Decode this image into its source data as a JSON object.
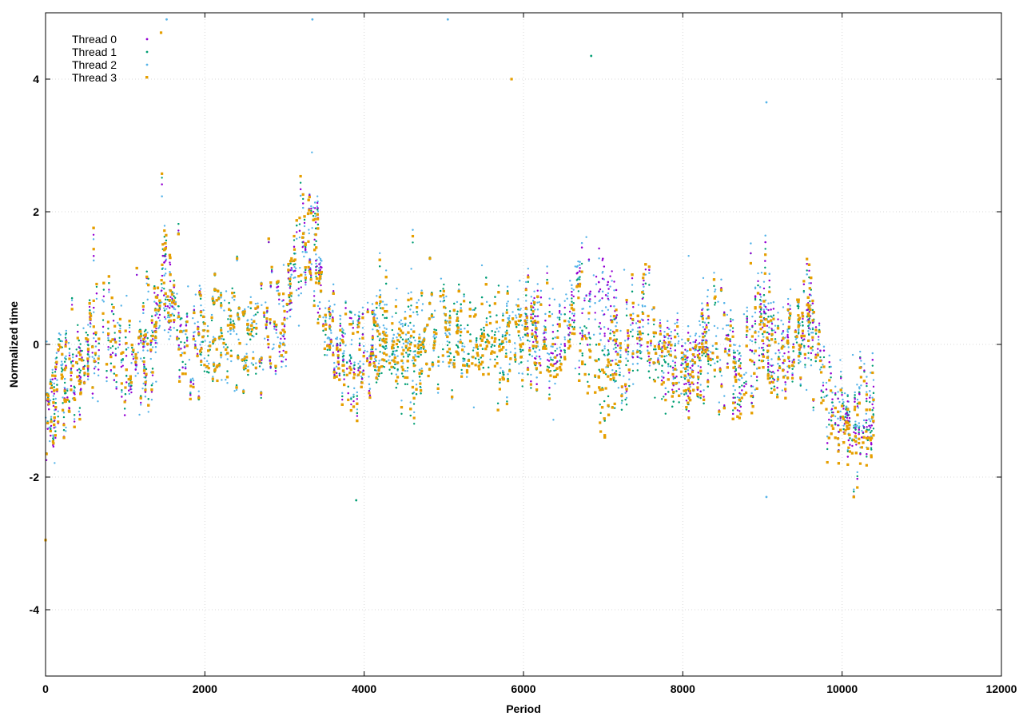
{
  "chart_data": {
    "type": "scatter",
    "title": "",
    "xlabel": "Period",
    "ylabel": "Normalized time",
    "xlim": [
      0,
      12000
    ],
    "ylim": [
      -5,
      5
    ],
    "x_ticks": [
      "0",
      "2000",
      "4000",
      "6000",
      "8000",
      "10000",
      "12000"
    ],
    "y_ticks": [
      "-4",
      "-2",
      "0",
      "2",
      "4"
    ],
    "grid": true,
    "legend_position": "top-left",
    "x_data_range": [
      0,
      10400
    ],
    "series": [
      {
        "name": "Thread 0",
        "color": "#9400d3",
        "marker": "dot",
        "approx_trend": [
          [
            0,
            -1.1
          ],
          [
            200,
            -0.6
          ],
          [
            400,
            -0.5
          ],
          [
            700,
            0.2
          ],
          [
            1000,
            -0.3
          ],
          [
            1300,
            -0.2
          ],
          [
            1500,
            1.2
          ],
          [
            1700,
            0.0
          ],
          [
            2000,
            0.1
          ],
          [
            2300,
            0.2
          ],
          [
            2600,
            0.0
          ],
          [
            3000,
            0.3
          ],
          [
            3200,
            1.5
          ],
          [
            3400,
            1.6
          ],
          [
            3500,
            0.3
          ],
          [
            3800,
            -0.4
          ],
          [
            4200,
            0.2
          ],
          [
            4600,
            -0.1
          ],
          [
            5000,
            0.3
          ],
          [
            5300,
            -0.2
          ],
          [
            5700,
            0.0
          ],
          [
            6000,
            0.1
          ],
          [
            6400,
            0.0
          ],
          [
            6700,
            0.6
          ],
          [
            7000,
            0.8
          ],
          [
            7200,
            -0.1
          ],
          [
            7500,
            0.4
          ],
          [
            7800,
            -0.2
          ],
          [
            8100,
            -0.3
          ],
          [
            8400,
            0.2
          ],
          [
            8700,
            -0.6
          ],
          [
            9000,
            0.4
          ],
          [
            9300,
            -0.2
          ],
          [
            9600,
            0.5
          ],
          [
            9800,
            -0.8
          ],
          [
            10100,
            -1.3
          ],
          [
            10400,
            -1.0
          ]
        ]
      },
      {
        "name": "Thread 1",
        "color": "#009e73",
        "marker": "dot",
        "approx_trend": [
          [
            0,
            -1.0
          ],
          [
            200,
            -0.5
          ],
          [
            400,
            -0.4
          ],
          [
            700,
            0.3
          ],
          [
            1000,
            -0.2
          ],
          [
            1300,
            -0.1
          ],
          [
            1500,
            1.3
          ],
          [
            1700,
            0.1
          ],
          [
            2000,
            0.0
          ],
          [
            2300,
            0.3
          ],
          [
            2600,
            -0.1
          ],
          [
            3000,
            0.4
          ],
          [
            3200,
            1.6
          ],
          [
            3400,
            1.5
          ],
          [
            3500,
            0.2
          ],
          [
            3800,
            -0.3
          ],
          [
            4200,
            0.1
          ],
          [
            4600,
            -0.2
          ],
          [
            5000,
            0.4
          ],
          [
            5300,
            -0.1
          ],
          [
            5700,
            0.1
          ],
          [
            6000,
            0.0
          ],
          [
            6400,
            -0.1
          ],
          [
            6700,
            0.5
          ],
          [
            7000,
            -0.6
          ],
          [
            7200,
            -0.3
          ],
          [
            7500,
            0.2
          ],
          [
            7800,
            -0.5
          ],
          [
            8100,
            -0.4
          ],
          [
            8400,
            0.1
          ],
          [
            8700,
            -0.5
          ],
          [
            9000,
            0.3
          ],
          [
            9300,
            -0.3
          ],
          [
            9600,
            0.4
          ],
          [
            9800,
            -0.9
          ],
          [
            10100,
            -1.2
          ],
          [
            10400,
            -1.1
          ]
        ]
      },
      {
        "name": "Thread 2",
        "color": "#56b4e9",
        "marker": "dot",
        "approx_trend": [
          [
            0,
            -1.0
          ],
          [
            200,
            -0.4
          ],
          [
            400,
            -0.5
          ],
          [
            700,
            0.1
          ],
          [
            1000,
            -0.2
          ],
          [
            1300,
            -0.3
          ],
          [
            1500,
            1.0
          ],
          [
            1700,
            0.0
          ],
          [
            2000,
            0.2
          ],
          [
            2300,
            0.1
          ],
          [
            2600,
            0.1
          ],
          [
            3000,
            0.2
          ],
          [
            3200,
            1.4
          ],
          [
            3400,
            1.7
          ],
          [
            3500,
            0.4
          ],
          [
            3800,
            -0.3
          ],
          [
            4200,
            0.3
          ],
          [
            4600,
            0.0
          ],
          [
            5000,
            0.2
          ],
          [
            5300,
            -0.1
          ],
          [
            5700,
            0.1
          ],
          [
            6000,
            0.2
          ],
          [
            6400,
            0.1
          ],
          [
            6700,
            0.7
          ],
          [
            7000,
            0.6
          ],
          [
            7200,
            -0.2
          ],
          [
            7500,
            0.3
          ],
          [
            7800,
            -0.1
          ],
          [
            8100,
            -0.2
          ],
          [
            8400,
            0.3
          ],
          [
            8700,
            -0.4
          ],
          [
            9000,
            0.5
          ],
          [
            9300,
            -0.1
          ],
          [
            9600,
            0.3
          ],
          [
            9800,
            -0.7
          ],
          [
            10100,
            -1.2
          ],
          [
            10400,
            -0.9
          ]
        ]
      },
      {
        "name": "Thread 3",
        "color": "#e69f00",
        "marker": "square",
        "approx_trend": [
          [
            0,
            -1.0
          ],
          [
            200,
            -0.6
          ],
          [
            400,
            -0.6
          ],
          [
            700,
            0.4
          ],
          [
            1000,
            -0.1
          ],
          [
            1300,
            -0.2
          ],
          [
            1500,
            1.4
          ],
          [
            1700,
            -0.1
          ],
          [
            2000,
            0.1
          ],
          [
            2300,
            0.2
          ],
          [
            2600,
            0.0
          ],
          [
            3000,
            0.4
          ],
          [
            3200,
            1.7
          ],
          [
            3400,
            1.4
          ],
          [
            3500,
            0.3
          ],
          [
            3800,
            -0.5
          ],
          [
            4200,
            0.2
          ],
          [
            4600,
            -0.1
          ],
          [
            5000,
            0.3
          ],
          [
            5300,
            -0.2
          ],
          [
            5700,
            0.0
          ],
          [
            6000,
            0.1
          ],
          [
            6400,
            -0.2
          ],
          [
            6700,
            0.4
          ],
          [
            7000,
            -0.9
          ],
          [
            7200,
            -0.1
          ],
          [
            7500,
            0.5
          ],
          [
            7800,
            -0.3
          ],
          [
            8100,
            -0.4
          ],
          [
            8400,
            0.2
          ],
          [
            8700,
            -0.7
          ],
          [
            9000,
            0.2
          ],
          [
            9300,
            -0.3
          ],
          [
            9600,
            0.6
          ],
          [
            9800,
            -1.1
          ],
          [
            10100,
            -1.4
          ],
          [
            10400,
            -1.2
          ]
        ]
      }
    ],
    "notable_points": [
      {
        "series": "Thread 3",
        "x": 0,
        "y": -2.95
      },
      {
        "series": "Thread 3",
        "x": 1450,
        "y": 4.7
      },
      {
        "series": "Thread 2",
        "x": 1520,
        "y": 4.9
      },
      {
        "series": "Thread 2",
        "x": 3350,
        "y": 4.9
      },
      {
        "series": "Thread 2",
        "x": 5050,
        "y": 4.9
      },
      {
        "series": "Thread 3",
        "x": 5850,
        "y": 4.0
      },
      {
        "series": "Thread 1",
        "x": 6850,
        "y": 4.35
      },
      {
        "series": "Thread 2",
        "x": 9050,
        "y": 3.65
      },
      {
        "series": "Thread 1",
        "x": 3900,
        "y": -2.35
      },
      {
        "series": "Thread 2",
        "x": 9050,
        "y": -2.3
      }
    ]
  }
}
